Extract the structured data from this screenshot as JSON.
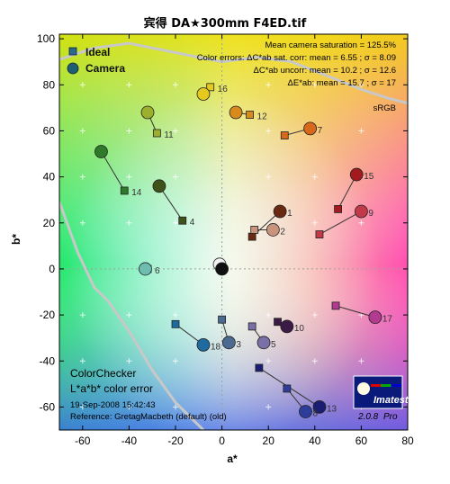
{
  "chart_data": {
    "type": "scatter",
    "title": "宾得 DA★300mm F4ED.tif",
    "xlabel": "a*",
    "ylabel": "b*",
    "xlim": [
      -70,
      80
    ],
    "ylim": [
      -70,
      102
    ],
    "xticks": [
      -60,
      -40,
      -20,
      0,
      20,
      40,
      60,
      80
    ],
    "yticks": [
      100,
      80,
      60,
      40,
      20,
      0,
      -20,
      -40,
      -60
    ],
    "legend": [
      {
        "label": "Ideal",
        "marker": "square",
        "color": "#2a6a8e"
      },
      {
        "label": "Camera",
        "marker": "circle",
        "color": "#1f5f73"
      }
    ],
    "stats": [
      "Mean camera saturation = 125.5%",
      "Color errors: ΔC*ab sat. corr:  mean = 6.55 ;  σ = 8.09",
      "ΔC*ab uncorr:  mean = 10.2 ;  σ = 12.6",
      "ΔE*ab:  mean = 15.7 ;  σ = 17",
      "sRGB"
    ],
    "caption": {
      "line1": "ColorChecker",
      "line2": "L*a*b* color error",
      "line3": "19-Sep-2008 15:42:43",
      "line4": "Reference: GretagMacbeth (default) (old)"
    },
    "logo": {
      "name": "Imatest",
      "version": "2.0.8",
      "edition": "Pro"
    },
    "patches": [
      {
        "id": 1,
        "ideal": [
          13,
          14
        ],
        "camera": [
          25,
          25
        ],
        "color": "#6a2a12"
      },
      {
        "id": 2,
        "ideal": [
          14,
          17
        ],
        "camera": [
          22,
          17
        ],
        "color": "#c9947d"
      },
      {
        "id": 3,
        "ideal": [
          0,
          -22
        ],
        "camera": [
          3,
          -32
        ],
        "color": "#4b6a92"
      },
      {
        "id": 4,
        "ideal": [
          -17,
          21
        ],
        "camera": [
          -27,
          36
        ],
        "color": "#3f5318"
      },
      {
        "id": 5,
        "ideal": [
          13,
          -25
        ],
        "camera": [
          18,
          -32
        ],
        "color": "#7a6fa6"
      },
      {
        "id": 6,
        "ideal": [
          -32,
          0
        ],
        "camera": [
          -33,
          0
        ],
        "color": "#6dbdb0"
      },
      {
        "id": 7,
        "ideal": [
          27,
          58
        ],
        "camera": [
          38,
          61
        ],
        "color": "#d9691a"
      },
      {
        "id": 8,
        "ideal": [
          28,
          -52
        ],
        "camera": [
          36,
          -62
        ],
        "color": "#2e3d9c"
      },
      {
        "id": 9,
        "ideal": [
          42,
          15
        ],
        "camera": [
          60,
          25
        ],
        "color": "#c2394a"
      },
      {
        "id": 10,
        "ideal": [
          24,
          -23
        ],
        "camera": [
          28,
          -25
        ],
        "color": "#3b1a46"
      },
      {
        "id": 11,
        "ideal": [
          -28,
          59
        ],
        "camera": [
          -32,
          68
        ],
        "color": "#9cb02d"
      },
      {
        "id": 12,
        "ideal": [
          12,
          67
        ],
        "camera": [
          6,
          68
        ],
        "color": "#d88b1c"
      },
      {
        "id": 13,
        "ideal": [
          16,
          -43
        ],
        "camera": [
          42,
          -60
        ],
        "color": "#1a1d72"
      },
      {
        "id": 14,
        "ideal": [
          -42,
          34
        ],
        "camera": [
          -52,
          51
        ],
        "color": "#2e7a2a"
      },
      {
        "id": 15,
        "ideal": [
          50,
          26
        ],
        "camera": [
          58,
          41
        ],
        "color": "#a31a1e"
      },
      {
        "id": 16,
        "ideal": [
          -5,
          79
        ],
        "camera": [
          -8,
          76
        ],
        "color": "#e5c91e"
      },
      {
        "id": 17,
        "ideal": [
          49,
          -16
        ],
        "camera": [
          66,
          -21
        ],
        "color": "#b23a90"
      },
      {
        "id": 18,
        "ideal": [
          -20,
          -24
        ],
        "camera": [
          -8,
          -33
        ],
        "color": "#1f6a9e"
      },
      {
        "id": 19,
        "ideal": [
          -1,
          2
        ],
        "camera": [
          -1,
          2
        ],
        "color": "#f2f2f2"
      },
      {
        "id": 20,
        "ideal": [
          0,
          0
        ],
        "camera": [
          0,
          0
        ],
        "color": "#101010"
      }
    ]
  }
}
